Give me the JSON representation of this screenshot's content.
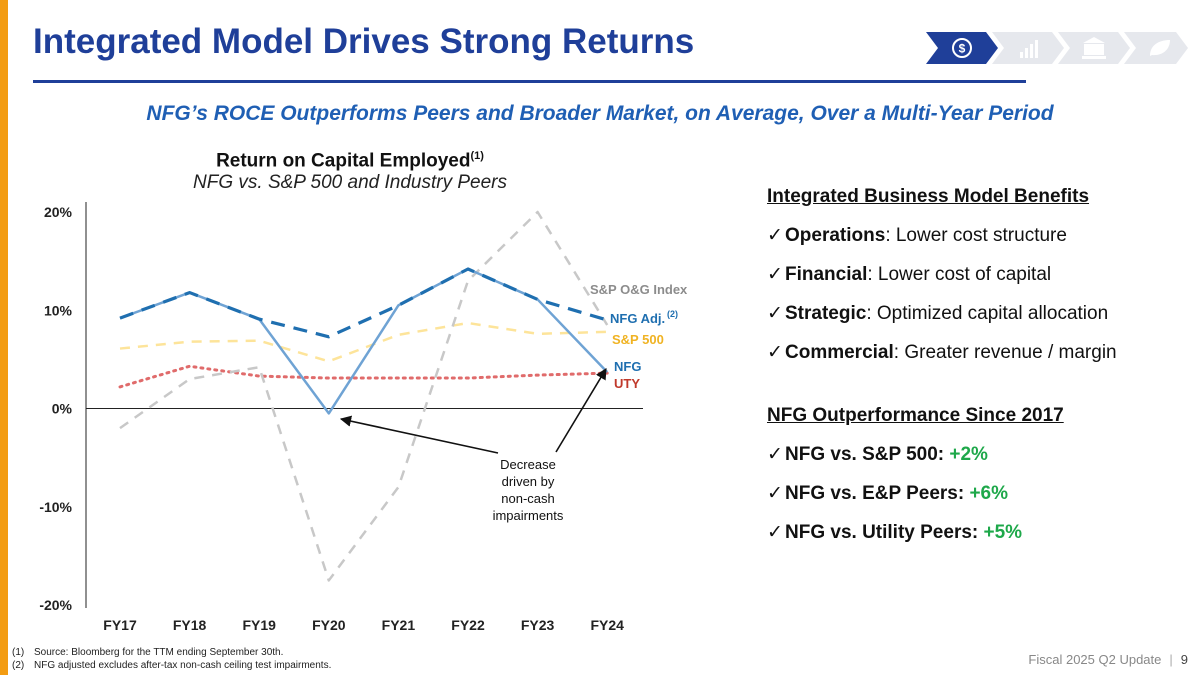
{
  "slide": {
    "title": "Integrated Model Drives Strong Returns",
    "subtitle": "NFG’s ROCE Outperforms Peers and Broader Market, on Average, Over a Multi-Year Period",
    "nav_icons": [
      "dollar-cycle-icon",
      "bar-chart-icon",
      "bank-icon",
      "leaf-icon"
    ],
    "accent_color": "#1f3f99",
    "orange_bar_color": "#f39c12"
  },
  "chart_title": {
    "main": "Return on Capital Employed",
    "footnote_ref": "(1)",
    "sub": "NFG vs. S&P 500 and Industry Peers"
  },
  "chart_data": {
    "type": "line",
    "categories": [
      "FY17",
      "FY18",
      "FY19",
      "FY20",
      "FY21",
      "FY22",
      "FY23",
      "FY24"
    ],
    "ylim": [
      -20,
      20
    ],
    "yticks": [
      "20%",
      "10%",
      "0%",
      "-10%",
      "-20%"
    ],
    "series": [
      {
        "name": "S&P O&G Index",
        "color": "#c8c8c8",
        "dash": "dashed",
        "values": [
          -2,
          3,
          4.2,
          -17.5,
          -8,
          13,
          20,
          8.5
        ]
      },
      {
        "name": "NFG Adj.",
        "footnote_ref": "(2)",
        "color": "#1f6fb0",
        "dash": "dashed-bold",
        "values": [
          9.2,
          11.8,
          9.1,
          7.3,
          10.5,
          14.2,
          11.1,
          9.0
        ]
      },
      {
        "name": "S&P 500",
        "color": "#fde49a",
        "dash": "dashed",
        "values": [
          6.1,
          6.8,
          6.9,
          4.8,
          7.5,
          8.7,
          7.6,
          7.8
        ]
      },
      {
        "name": "NFG",
        "color": "#6fa3d4",
        "dash": "solid",
        "values": [
          9.2,
          11.8,
          9.1,
          -0.5,
          10.5,
          14.2,
          11.1,
          3.7
        ]
      },
      {
        "name": "UTY",
        "color": "#e06b6b",
        "dash": "dotted",
        "values": [
          2.2,
          4.3,
          3.3,
          3.1,
          3.1,
          3.1,
          3.4,
          3.6
        ]
      }
    ],
    "annotation": {
      "text": [
        "Decrease",
        "driven by",
        "non-cash",
        "impairments"
      ],
      "color": "#111111"
    }
  },
  "panel": {
    "benefits_heading": "Integrated Business Model Benefits",
    "benefits": [
      {
        "bold": "Operations",
        "text": ": Lower cost structure"
      },
      {
        "bold": "Financial",
        "text": ": Lower cost of capital"
      },
      {
        "bold": "Strategic",
        "text": ": Optimized capital allocation"
      },
      {
        "bold": "Commercial",
        "text": ": Greater revenue / margin"
      }
    ],
    "outperformance_heading": "NFG Outperformance Since 2017",
    "outperformance": [
      {
        "label": "NFG vs. S&P 500: ",
        "value": "+2%"
      },
      {
        "label": "NFG vs. E&P Peers: ",
        "value": "+6%"
      },
      {
        "label": "NFG vs. Utility Peers: ",
        "value": "+5%"
      }
    ],
    "check": "✓",
    "green_color": "#1ea84a"
  },
  "footnotes": [
    {
      "num": "(1)",
      "text": "Source: Bloomberg for the TTM ending September 30th."
    },
    {
      "num": "(2)",
      "text": "NFG adjusted excludes after-tax non-cash ceiling test impairments."
    }
  ],
  "footer": {
    "label": "Fiscal 2025 Q2 Update",
    "page": "9"
  }
}
